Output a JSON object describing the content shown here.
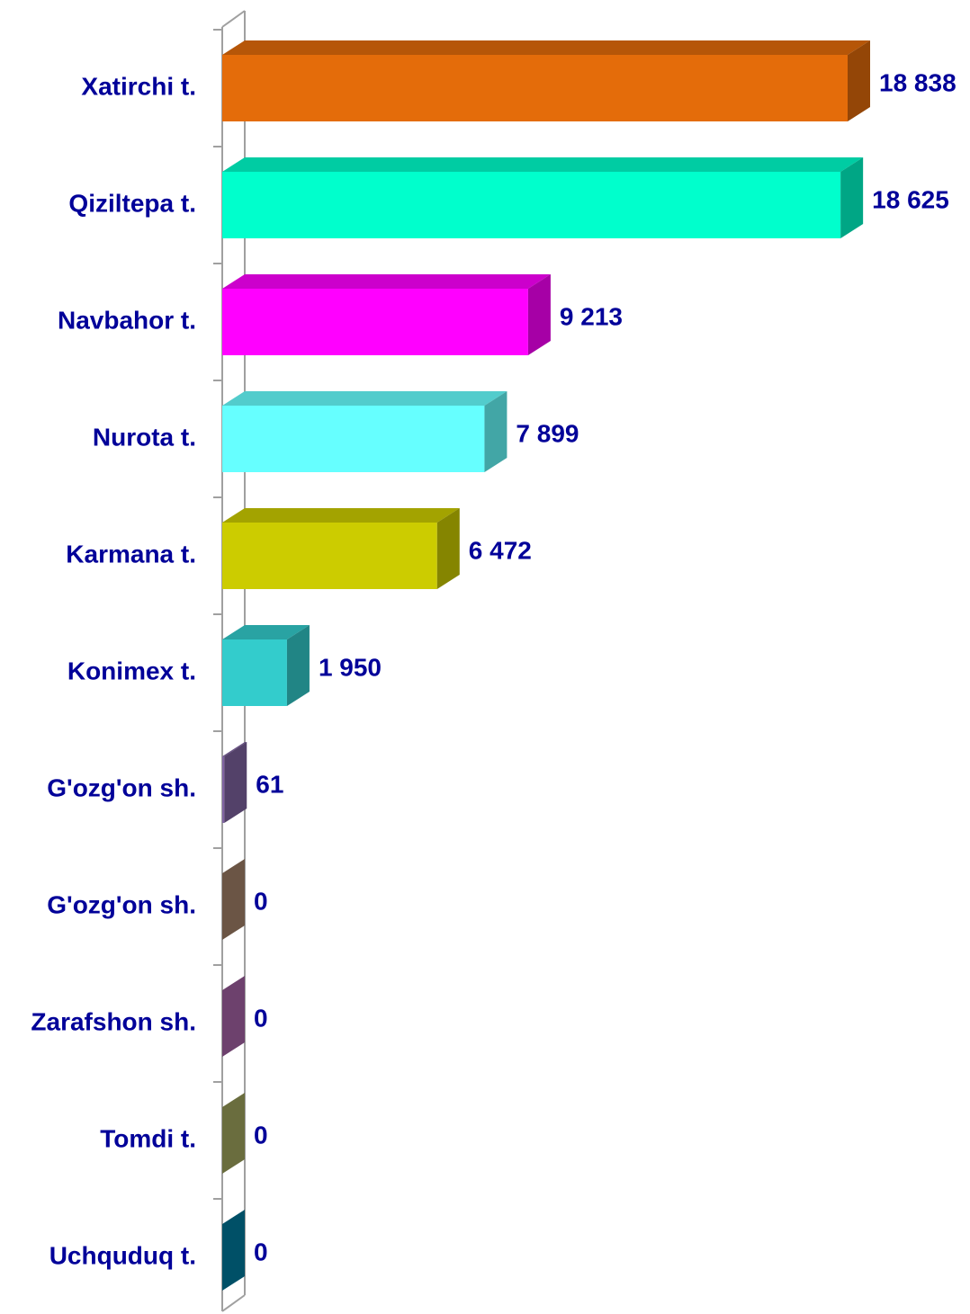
{
  "chart_data": {
    "type": "bar3d_horizontal",
    "categories": [
      "Xatirchi t.",
      "Qiziltepa t.",
      "Navbahor t.",
      "Nurota t.",
      "Karmana t.",
      "Konimex t.",
      "G'ozg'on sh.",
      "G'ozg'on sh.",
      "Zarafshon sh.",
      "Tomdi t.",
      "Uchquduq t."
    ],
    "values": [
      18838,
      18625,
      9213,
      7899,
      6472,
      1950,
      61,
      0,
      0,
      0,
      0
    ],
    "value_labels": [
      "18 838",
      "18 625",
      "9 213",
      "7 899",
      "6 472",
      "1 950",
      "61",
      "0",
      "0",
      "0",
      "0"
    ],
    "colors": [
      "#e46c0a",
      "#00ffcc",
      "#ff00ff",
      "#66ffff",
      "#cccc00",
      "#33cccc",
      "#8064a2",
      "#a5826a",
      "#a864a8",
      "#a3a860",
      "#007b9f"
    ]
  }
}
